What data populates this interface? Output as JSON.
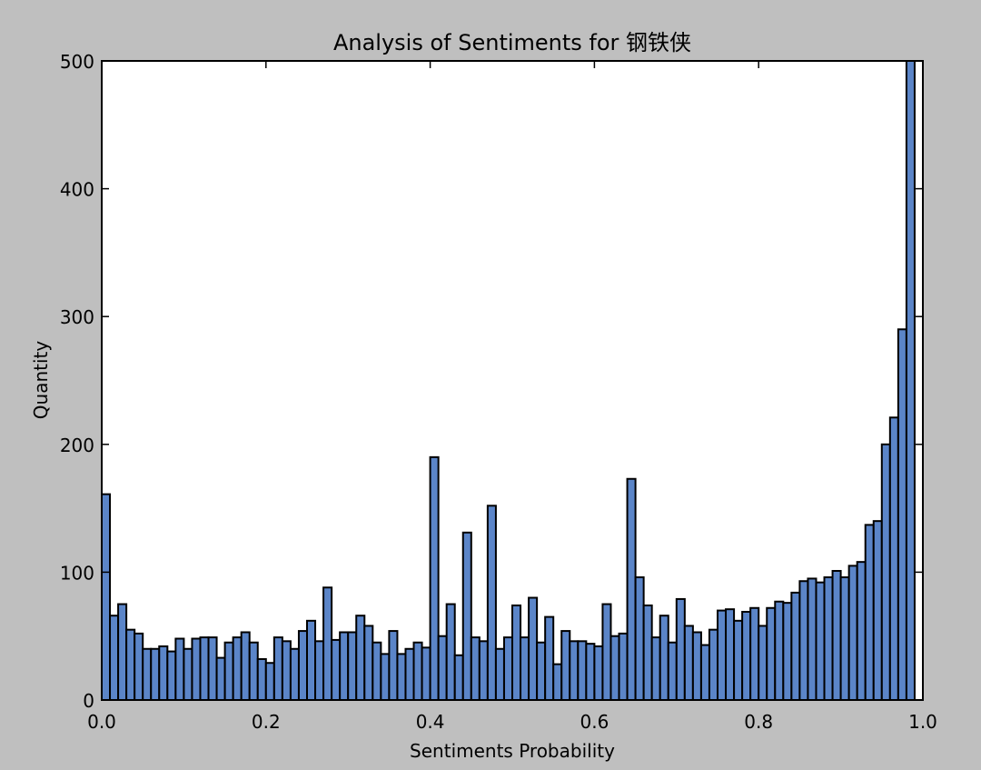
{
  "chart_data": {
    "type": "bar",
    "title": "Analysis of Sentiments for 钢铁侠",
    "xlabel": "Sentiments Probability",
    "ylabel": "Quantity",
    "xlim": [
      0.0,
      1.0
    ],
    "ylim": [
      0,
      500
    ],
    "xticks": [
      "0.0",
      "0.2",
      "0.4",
      "0.6",
      "0.8",
      "1.0"
    ],
    "yticks": [
      "0",
      "100",
      "200",
      "300",
      "400",
      "500"
    ],
    "grid": false,
    "legend": "none",
    "bar_color": "#5b85c8",
    "edge_color": "#000000",
    "bin_width": 0.01,
    "bin_start": 0.0,
    "values": [
      161,
      66,
      75,
      55,
      52,
      40,
      40,
      42,
      38,
      48,
      40,
      48,
      49,
      49,
      33,
      45,
      49,
      53,
      45,
      32,
      29,
      49,
      46,
      40,
      54,
      62,
      46,
      88,
      47,
      53,
      53,
      66,
      58,
      45,
      36,
      54,
      36,
      40,
      45,
      41,
      190,
      50,
      75,
      35,
      131,
      49,
      46,
      152,
      40,
      49,
      74,
      49,
      80,
      45,
      65,
      28,
      54,
      46,
      46,
      44,
      42,
      75,
      50,
      52,
      173,
      96,
      74,
      49,
      66,
      45,
      79,
      58,
      53,
      43,
      55,
      70,
      71,
      62,
      69,
      72,
      58,
      72,
      77,
      76,
      84,
      93,
      95,
      92,
      96,
      101,
      96,
      105,
      108,
      137,
      140,
      200,
      221,
      290,
      500
    ]
  }
}
